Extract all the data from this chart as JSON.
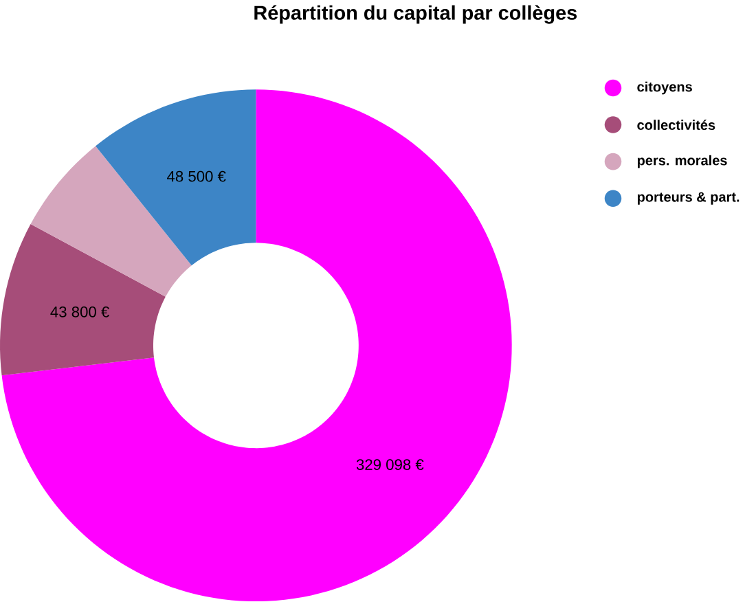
{
  "chart_data": {
    "type": "donut",
    "title": "Répartition du capital par collèges",
    "categories": [
      "citoyens",
      "collectivités",
      "pers. morales",
      "porteurs & part."
    ],
    "values": [
      329098,
      43800,
      28600,
      48500
    ],
    "value_labels": [
      "329 098 €",
      "43 800 €",
      null,
      "48 500 €"
    ],
    "colors": [
      "#ff00ff",
      "#a64d79",
      "#d5a6bd",
      "#3d85c6"
    ],
    "legend": "top right"
  }
}
